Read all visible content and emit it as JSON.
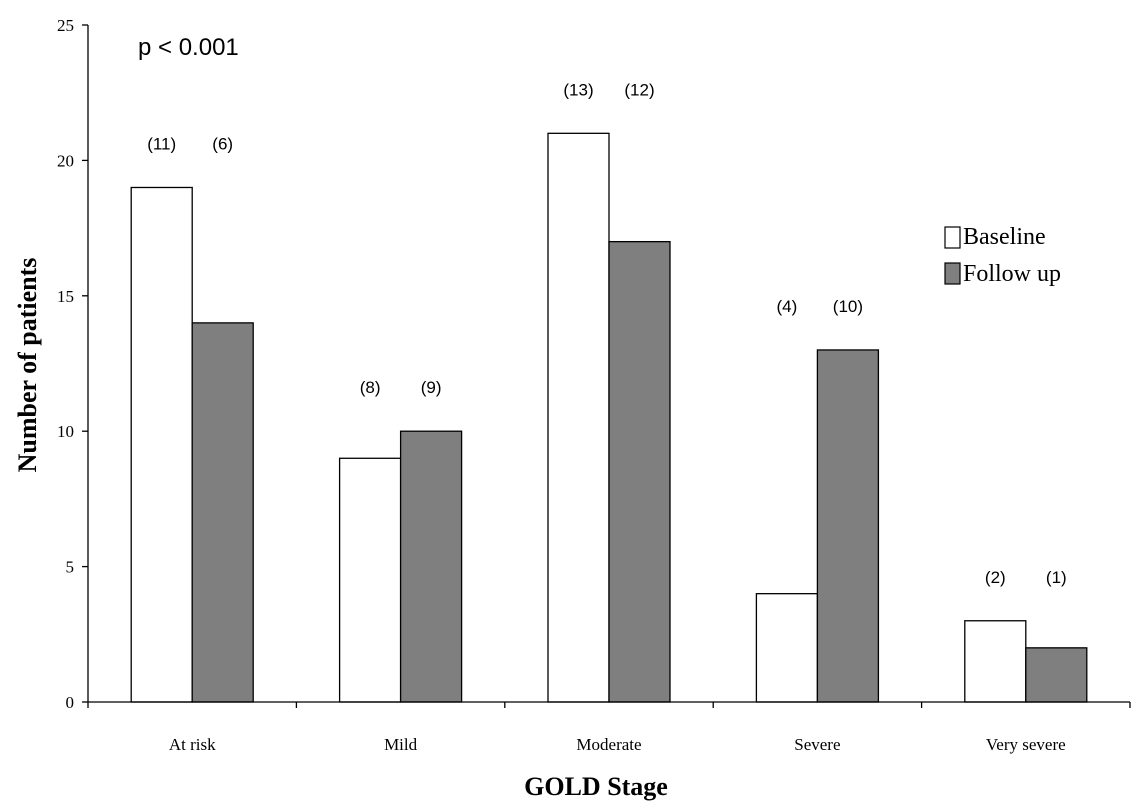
{
  "chart_data": {
    "type": "bar",
    "xlabel": "GOLD Stage",
    "ylabel": "Number of patients",
    "ylim": [
      0,
      25
    ],
    "yticks": [
      0,
      5,
      10,
      15,
      20,
      25
    ],
    "categories": [
      "At risk",
      "Mild",
      "Moderate",
      "Severe",
      "Very severe"
    ],
    "series": [
      {
        "name": "Baseline",
        "color": "#ffffff",
        "values": [
          19,
          9,
          21,
          4,
          3
        ],
        "labels": [
          "(11)",
          "(8)",
          "(13)",
          "(4)",
          "(2)"
        ]
      },
      {
        "name": "Follow up",
        "color": "#7f7f7f",
        "values": [
          14,
          10,
          17,
          13,
          2
        ],
        "labels": [
          "(6)",
          "(9)",
          "(12)",
          "(10)",
          "(1)"
        ]
      }
    ],
    "annotation": "p < 0.001",
    "legend_position": "right",
    "grid": false
  }
}
